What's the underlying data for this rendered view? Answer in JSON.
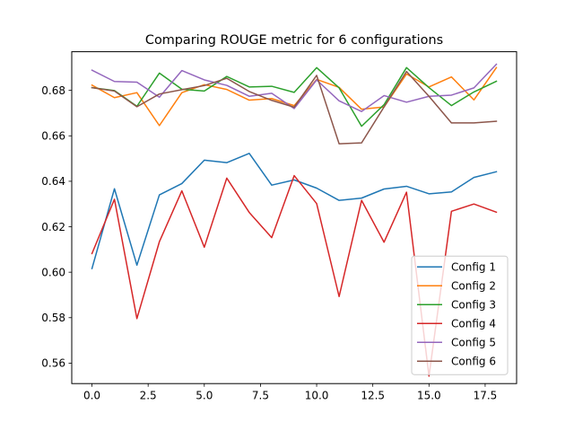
{
  "chart_data": {
    "type": "line",
    "title": "Comparing ROUGE metric for 6 configurations",
    "xlabel": "",
    "ylabel": "",
    "xlim": [
      -0.9,
      18.9
    ],
    "ylim": [
      0.551,
      0.697
    ],
    "xticks": [
      0.0,
      2.5,
      5.0,
      7.5,
      10.0,
      12.5,
      15.0,
      17.5
    ],
    "xtick_labels": [
      "0.0",
      "2.5",
      "5.0",
      "7.5",
      "10.0",
      "12.5",
      "15.0",
      "17.5"
    ],
    "yticks": [
      0.56,
      0.58,
      0.6,
      0.62,
      0.64,
      0.66,
      0.68
    ],
    "ytick_labels": [
      "0.56",
      "0.58",
      "0.60",
      "0.62",
      "0.64",
      "0.66",
      "0.68"
    ],
    "grid": false,
    "legend_position": "lower-right",
    "x": [
      0,
      1,
      2,
      3,
      4,
      5,
      6,
      7,
      8,
      9,
      10,
      11,
      12,
      13,
      14,
      15,
      16,
      17,
      18
    ],
    "series": [
      {
        "name": "Config 1",
        "color": "#1f77b4",
        "values": [
          0.6016,
          0.6367,
          0.6031,
          0.634,
          0.639,
          0.6493,
          0.6482,
          0.6523,
          0.6383,
          0.6406,
          0.637,
          0.6316,
          0.6326,
          0.6366,
          0.6378,
          0.6345,
          0.6353,
          0.6417,
          0.6442
        ]
      },
      {
        "name": "Config 2",
        "color": "#ff7f0e",
        "values": [
          0.6823,
          0.6768,
          0.679,
          0.6645,
          0.679,
          0.6825,
          0.6804,
          0.6757,
          0.6764,
          0.6733,
          0.6848,
          0.6813,
          0.6717,
          0.6727,
          0.6872,
          0.6815,
          0.6859,
          0.6758,
          0.69
        ]
      },
      {
        "name": "Config 3",
        "color": "#2ca02c",
        "values": [
          0.6812,
          0.6799,
          0.673,
          0.6876,
          0.6805,
          0.6797,
          0.6861,
          0.6815,
          0.6818,
          0.6791,
          0.69,
          0.6811,
          0.6642,
          0.6737,
          0.69,
          0.6812,
          0.6733,
          0.6793,
          0.684
        ]
      },
      {
        "name": "Config 4",
        "color": "#d62728",
        "values": [
          0.6082,
          0.6321,
          0.5796,
          0.6134,
          0.6358,
          0.611,
          0.6414,
          0.6263,
          0.6152,
          0.6425,
          0.6302,
          0.5893,
          0.6316,
          0.6132,
          0.6352,
          0.5543,
          0.6268,
          0.63,
          0.6264
        ]
      },
      {
        "name": "Config 5",
        "color": "#9467bd",
        "values": [
          0.6889,
          0.6839,
          0.6836,
          0.677,
          0.6887,
          0.6846,
          0.6822,
          0.6774,
          0.6787,
          0.672,
          0.6846,
          0.6754,
          0.6707,
          0.6777,
          0.6748,
          0.6774,
          0.6779,
          0.6811,
          0.6915
        ]
      },
      {
        "name": "Config 6",
        "color": "#8c564b",
        "values": [
          0.6812,
          0.6797,
          0.6728,
          0.6784,
          0.6803,
          0.6821,
          0.6853,
          0.6795,
          0.6756,
          0.6726,
          0.6866,
          0.6565,
          0.6569,
          0.6727,
          0.6883,
          0.6774,
          0.6657,
          0.6657,
          0.6664
        ]
      }
    ]
  }
}
